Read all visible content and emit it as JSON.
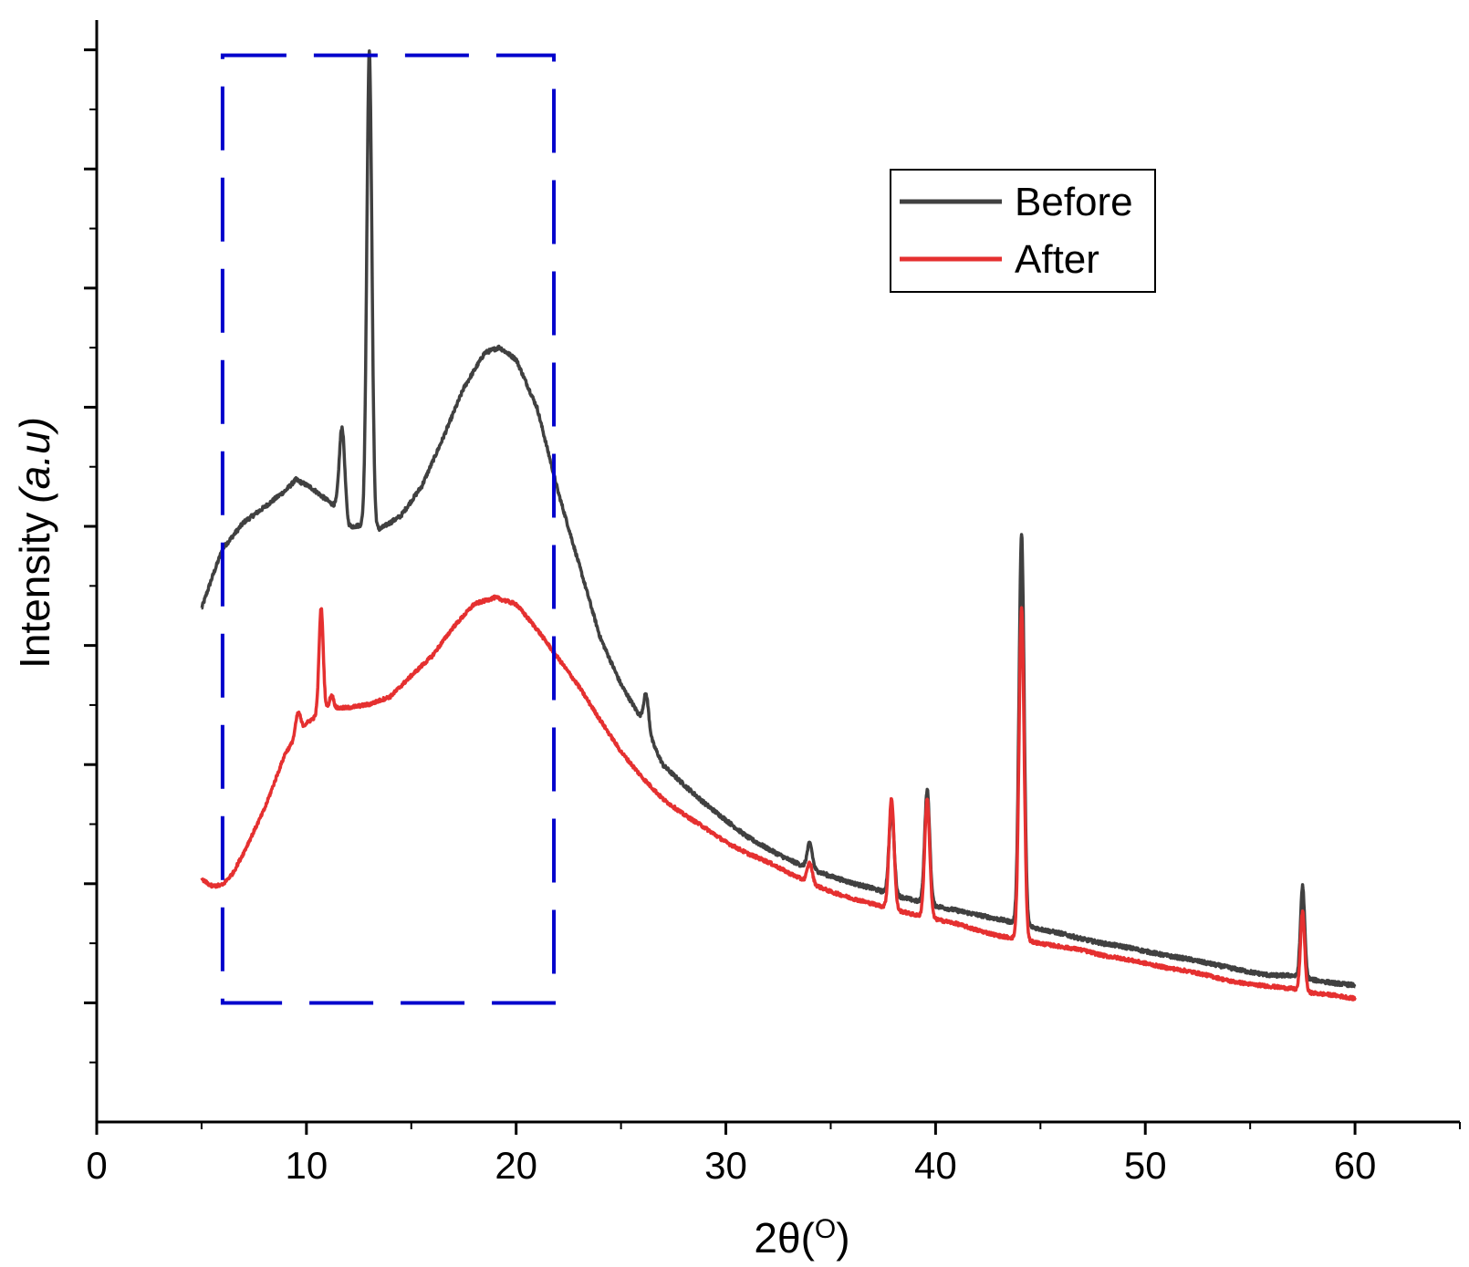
{
  "chart_data": {
    "type": "line",
    "xlabel": "2θ(",
    "xlabel_sup": "O",
    "xlabel_close": ")",
    "ylabel": "Intensity",
    "ylabel_unit": "(a.u)",
    "xlim": [
      0,
      65
    ],
    "ylim": [
      0,
      100
    ],
    "xticks": [
      0,
      10,
      20,
      30,
      40,
      50,
      60
    ],
    "x_minor_step": 5,
    "y_major_count": 9,
    "y_minor_per_major": 1,
    "y_tick_labels_shown": false,
    "legend": {
      "position": "top-right",
      "entries": [
        "Before",
        "After"
      ]
    },
    "highlight_region": {
      "style": "dashed",
      "color": "#0000cc",
      "x_range": [
        6.0,
        21.8
      ],
      "y_range": [
        10.8,
        96.8
      ]
    },
    "series": [
      {
        "name": "Before",
        "color": "#404040",
        "baseline": [
          [
            5.0,
            46.6
          ],
          [
            5.5,
            49.4
          ],
          [
            6.0,
            52.0
          ],
          [
            7.0,
            54.4
          ],
          [
            8.0,
            55.8
          ],
          [
            9.0,
            57.3
          ],
          [
            9.5,
            58.3
          ],
          [
            10.2,
            57.6
          ],
          [
            11.0,
            56.4
          ],
          [
            11.5,
            55.7
          ],
          [
            12.0,
            54.0
          ],
          [
            12.8,
            54.2
          ],
          [
            13.5,
            53.8
          ],
          [
            14.5,
            55.0
          ],
          [
            15.5,
            57.7
          ],
          [
            16.5,
            62.0
          ],
          [
            17.5,
            66.6
          ],
          [
            18.5,
            69.8
          ],
          [
            19.2,
            70.3
          ],
          [
            20.0,
            69.2
          ],
          [
            21.0,
            64.8
          ],
          [
            22.0,
            57.2
          ],
          [
            23.0,
            50.6
          ],
          [
            24.0,
            44.0
          ],
          [
            25.0,
            39.7
          ],
          [
            26.0,
            36.5
          ],
          [
            27.0,
            32.4
          ],
          [
            28.0,
            30.6
          ],
          [
            29.0,
            28.9
          ],
          [
            30.0,
            27.4
          ],
          [
            31.0,
            25.9
          ],
          [
            32.0,
            24.8
          ],
          [
            33.0,
            23.8
          ],
          [
            34.0,
            23.0
          ],
          [
            35.0,
            22.3
          ],
          [
            36.0,
            21.7
          ],
          [
            37.0,
            21.2
          ],
          [
            38.0,
            20.6
          ],
          [
            39.0,
            20.1
          ],
          [
            40.0,
            19.6
          ],
          [
            41.0,
            19.2
          ],
          [
            42.0,
            18.8
          ],
          [
            43.0,
            18.4
          ],
          [
            44.0,
            18.0
          ],
          [
            45.0,
            17.5
          ],
          [
            46.0,
            17.1
          ],
          [
            47.0,
            16.6
          ],
          [
            48.0,
            16.2
          ],
          [
            49.0,
            15.9
          ],
          [
            50.0,
            15.5
          ],
          [
            51.0,
            15.1
          ],
          [
            52.0,
            14.8
          ],
          [
            53.0,
            14.4
          ],
          [
            54.0,
            14.0
          ],
          [
            55.0,
            13.6
          ],
          [
            56.0,
            13.3
          ],
          [
            57.0,
            13.3
          ],
          [
            58.0,
            12.9
          ],
          [
            59.0,
            12.6
          ],
          [
            60.0,
            12.4
          ]
        ],
        "peaks": [
          [
            11.7,
            8.0,
            0.13
          ],
          [
            13.0,
            43.0,
            0.12
          ],
          [
            26.2,
            3.1,
            0.12
          ],
          [
            34.0,
            2.3,
            0.12
          ],
          [
            37.9,
            7.8,
            0.12
          ],
          [
            39.6,
            10.3,
            0.12
          ],
          [
            44.1,
            35.4,
            0.12
          ],
          [
            57.5,
            8.3,
            0.1
          ]
        ],
        "noise": 0.35
      },
      {
        "name": "After",
        "color": "#e53030",
        "baseline": [
          [
            5.0,
            22.0
          ],
          [
            5.5,
            21.4
          ],
          [
            6.0,
            21.5
          ],
          [
            6.5,
            22.6
          ],
          [
            7.0,
            24.4
          ],
          [
            8.0,
            28.4
          ],
          [
            9.0,
            33.5
          ],
          [
            10.0,
            36.2
          ],
          [
            11.0,
            37.5
          ],
          [
            12.0,
            37.6
          ],
          [
            13.0,
            37.9
          ],
          [
            14.0,
            38.6
          ],
          [
            15.0,
            40.5
          ],
          [
            16.0,
            42.3
          ],
          [
            17.0,
            44.9
          ],
          [
            18.0,
            47.0
          ],
          [
            19.0,
            47.6
          ],
          [
            20.0,
            47.0
          ],
          [
            21.0,
            44.7
          ],
          [
            22.0,
            42.1
          ],
          [
            23.0,
            39.5
          ],
          [
            24.0,
            36.5
          ],
          [
            25.0,
            33.6
          ],
          [
            26.0,
            31.3
          ],
          [
            27.0,
            29.3
          ],
          [
            28.0,
            27.9
          ],
          [
            29.0,
            26.7
          ],
          [
            30.0,
            25.4
          ],
          [
            31.0,
            24.4
          ],
          [
            32.0,
            23.6
          ],
          [
            33.0,
            22.6
          ],
          [
            34.0,
            21.7
          ],
          [
            35.0,
            20.9
          ],
          [
            36.0,
            20.3
          ],
          [
            37.0,
            19.8
          ],
          [
            38.0,
            19.3
          ],
          [
            39.0,
            18.8
          ],
          [
            40.0,
            18.4
          ],
          [
            41.0,
            18.0
          ],
          [
            42.0,
            17.4
          ],
          [
            43.0,
            16.9
          ],
          [
            44.0,
            16.6
          ],
          [
            45.0,
            16.2
          ],
          [
            46.0,
            15.9
          ],
          [
            47.0,
            15.6
          ],
          [
            48.0,
            15.1
          ],
          [
            49.0,
            14.8
          ],
          [
            50.0,
            14.4
          ],
          [
            51.0,
            14.0
          ],
          [
            52.0,
            13.7
          ],
          [
            53.0,
            13.3
          ],
          [
            54.0,
            12.8
          ],
          [
            55.0,
            12.5
          ],
          [
            56.0,
            12.3
          ],
          [
            57.0,
            12.1
          ],
          [
            58.0,
            11.7
          ],
          [
            59.0,
            11.5
          ],
          [
            60.0,
            11.2
          ]
        ],
        "peaks": [
          [
            9.6,
            2.0,
            0.12
          ],
          [
            10.7,
            9.5,
            0.1
          ],
          [
            11.2,
            1.2,
            0.1
          ],
          [
            34.0,
            1.8,
            0.12
          ],
          [
            37.9,
            10.0,
            0.12
          ],
          [
            39.6,
            10.7,
            0.12
          ],
          [
            44.1,
            30.1,
            0.12
          ],
          [
            57.5,
            7.2,
            0.1
          ]
        ],
        "noise": 0.3
      }
    ]
  }
}
